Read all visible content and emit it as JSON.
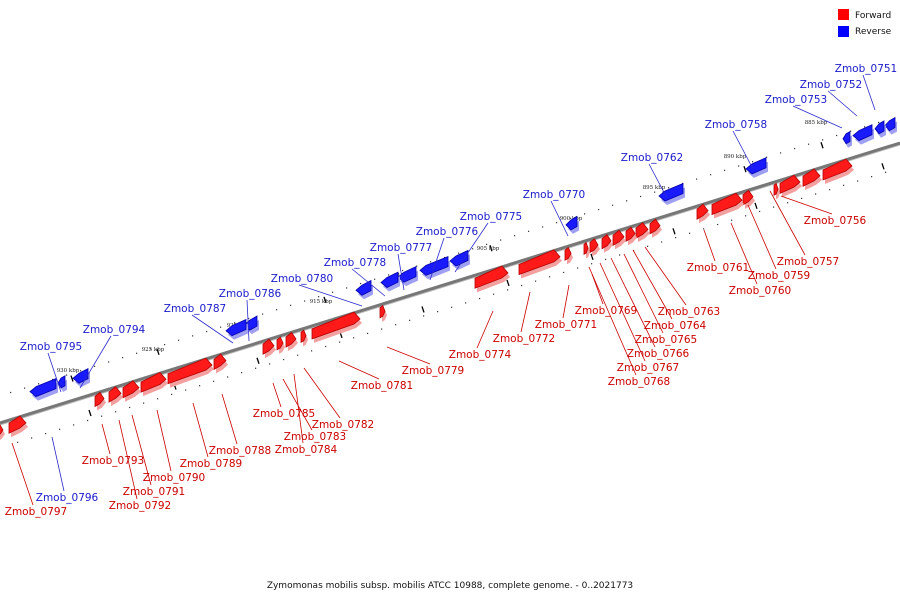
{
  "legend": [
    {
      "label": "Forward",
      "color": "#ff0000"
    },
    {
      "label": "Reverse",
      "color": "#0000ff"
    }
  ],
  "caption": "Zymomonas mobilis subsp. mobilis ATCC 10988, complete genome. - 0..2021773",
  "colors": {
    "forward_top": "#ff1a1a",
    "forward_side": "#b30000",
    "forward_shadow": "#f2a0a0",
    "reverse_top": "#1a1aff",
    "reverse_side": "#0000a8",
    "reverse_shadow": "#a0a0f2",
    "backbone": "#777777",
    "leader_forward": "#cc0000",
    "leader_reverse": "#2a2acc"
  },
  "tick_labels": [
    "885 kbp",
    "890 kbp",
    "895 kbp",
    "900 kbp",
    "905 kbp",
    "910 kbp",
    "915 kbp",
    "920 kbp",
    "925 kbp",
    "930 kbp"
  ],
  "genes_forward": [
    "Zmob_0756",
    "Zmob_0757",
    "Zmob_0759",
    "Zmob_0760",
    "Zmob_0761",
    "Zmob_0763",
    "Zmob_0764",
    "Zmob_0765",
    "Zmob_0766",
    "Zmob_0767",
    "Zmob_0768",
    "Zmob_0769",
    "Zmob_0771",
    "Zmob_0772",
    "Zmob_0774",
    "Zmob_0779",
    "Zmob_0781",
    "Zmob_0782",
    "Zmob_0784",
    "Zmob_0783",
    "Zmob_0785",
    "Zmob_0788",
    "Zmob_0789",
    "Zmob_0790",
    "Zmob_0791",
    "Zmob_0792",
    "Zmob_0793",
    "Zmob_0797"
  ],
  "genes_reverse": [
    "Zmob_0751",
    "Zmob_0752",
    "Zmob_0753",
    "Zmob_0758",
    "Zmob_0762",
    "Zmob_0770",
    "Zmob_0775",
    "Zmob_0776",
    "Zmob_0777",
    "Zmob_0778",
    "Zmob_0780",
    "Zmob_0786",
    "Zmob_0787",
    "Zmob_0794",
    "Zmob_0795",
    "Zmob_0796"
  ]
}
